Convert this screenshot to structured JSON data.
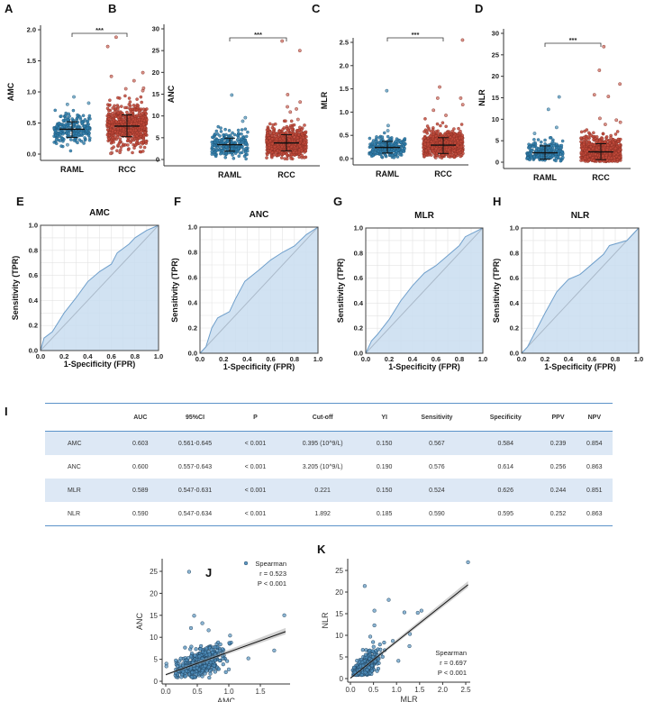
{
  "panel_labels": {
    "A": "A",
    "B": "B",
    "C": "C",
    "D": "D",
    "E": "E",
    "F": "F",
    "G": "G",
    "H": "H",
    "I": "I",
    "J": "J",
    "K": "K"
  },
  "colors": {
    "RAML": "#2f7eab",
    "RCC": "#c24a3b",
    "roc_fill": "#c9ddf0",
    "roc_line": "#6f9fcb",
    "diagonal": "#aab9c9",
    "regression": "#111111"
  },
  "chart_data": [
    {
      "id": "A",
      "type": "scatter",
      "subtype": "jitter-dot",
      "ylabel": "AMC",
      "categories": [
        "RAML",
        "RCC"
      ],
      "ylim": [
        0,
        2.0
      ],
      "yticks": [
        "0.0",
        "0.5",
        "1.0",
        "1.5",
        "2.0"
      ],
      "significance": "***",
      "groups": [
        {
          "name": "RAML",
          "mean": 0.4,
          "sd_low": 0.27,
          "sd_high": 0.52,
          "outliers": [
            0.92,
            0.82,
            0.8,
            0.15
          ]
        },
        {
          "name": "RCC",
          "mean": 0.45,
          "sd_low": 0.28,
          "sd_high": 0.63,
          "outliers": [
            1.88,
            1.73,
            1.31,
            1.25,
            1.18,
            1.06,
            1.05,
            1.02,
            0.02,
            0.01
          ]
        }
      ]
    },
    {
      "id": "B",
      "type": "scatter",
      "subtype": "jitter-dot",
      "ylabel": "ANC",
      "categories": [
        "RAML",
        "RCC"
      ],
      "ylim": [
        0,
        30
      ],
      "yticks": [
        "0",
        "5",
        "10",
        "15",
        "20",
        "25",
        "30"
      ],
      "significance": "***",
      "groups": [
        {
          "name": "RAML",
          "mean": 3.4,
          "sd_low": 1.9,
          "sd_high": 4.9,
          "outliers": [
            14.8,
            9.6,
            8.8
          ]
        },
        {
          "name": "RCC",
          "mean": 3.8,
          "sd_low": 2.0,
          "sd_high": 5.7,
          "outliers": [
            27.2,
            25.0,
            14.9,
            13.2,
            12.1,
            11.6,
            10.9,
            9.2
          ]
        }
      ]
    },
    {
      "id": "C",
      "type": "scatter",
      "subtype": "jitter-dot",
      "ylabel": "MLR",
      "categories": [
        "RAML",
        "RCC"
      ],
      "ylim": [
        0,
        2.5
      ],
      "yticks": [
        "0.0",
        "0.5",
        "1.0",
        "1.5",
        "2.0",
        "2.5"
      ],
      "significance": "***",
      "groups": [
        {
          "name": "RAML",
          "mean": 0.24,
          "sd_low": 0.12,
          "sd_high": 0.37,
          "outliers": [
            1.46,
            0.71,
            0.6
          ]
        },
        {
          "name": "RCC",
          "mean": 0.29,
          "sd_low": 0.11,
          "sd_high": 0.45,
          "outliers": [
            2.55,
            1.54,
            1.3,
            1.3,
            1.16,
            1.04,
            0.93,
            0.02
          ]
        }
      ]
    },
    {
      "id": "D",
      "type": "scatter",
      "subtype": "jitter-dot",
      "ylabel": "NLR",
      "categories": [
        "RAML",
        "RCC"
      ],
      "ylim": [
        0,
        30
      ],
      "yticks": [
        "0",
        "5",
        "10",
        "15",
        "20",
        "25",
        "30"
      ],
      "significance": "***",
      "groups": [
        {
          "name": "RAML",
          "mean": 2.2,
          "sd_low": 0.7,
          "sd_high": 3.8,
          "outliers": [
            15.2,
            12.3,
            8.1,
            6.7
          ]
        },
        {
          "name": "RCC",
          "mean": 2.4,
          "sd_low": 0.6,
          "sd_high": 4.3,
          "outliers": [
            26.9,
            21.4,
            18.2,
            15.7,
            15.3,
            10.2,
            9.8,
            9.3,
            8.8
          ]
        }
      ]
    },
    {
      "id": "E",
      "type": "area",
      "title": "AMC",
      "xlabel": "1-Specificity (FPR)",
      "ylabel": "Sensitivity (TPR)",
      "xlim": [
        0,
        1
      ],
      "ylim": [
        0,
        1
      ],
      "ticks": [
        "0.0",
        "0.2",
        "0.4",
        "0.6",
        "0.8",
        "1.0"
      ],
      "grid": true,
      "points": [
        [
          0,
          0
        ],
        [
          0.03,
          0.1
        ],
        [
          0.1,
          0.15
        ],
        [
          0.2,
          0.3
        ],
        [
          0.3,
          0.42
        ],
        [
          0.4,
          0.55
        ],
        [
          0.5,
          0.63
        ],
        [
          0.6,
          0.69
        ],
        [
          0.65,
          0.78
        ],
        [
          0.75,
          0.85
        ],
        [
          0.8,
          0.9
        ],
        [
          0.9,
          0.96
        ],
        [
          1,
          1
        ]
      ]
    },
    {
      "id": "F",
      "type": "area",
      "title": "ANC",
      "xlabel": "1-Specificity (FPR)",
      "ylabel": "Sensitivity (TPR)",
      "xlim": [
        0,
        1
      ],
      "ylim": [
        0,
        1
      ],
      "ticks": [
        "0.0",
        "0.2",
        "0.4",
        "0.6",
        "0.8",
        "1.0"
      ],
      "grid": true,
      "points": [
        [
          0,
          0
        ],
        [
          0.05,
          0.05
        ],
        [
          0.1,
          0.2
        ],
        [
          0.15,
          0.28
        ],
        [
          0.25,
          0.33
        ],
        [
          0.3,
          0.43
        ],
        [
          0.38,
          0.57
        ],
        [
          0.5,
          0.66
        ],
        [
          0.6,
          0.74
        ],
        [
          0.7,
          0.8
        ],
        [
          0.8,
          0.85
        ],
        [
          0.9,
          0.94
        ],
        [
          1,
          1
        ]
      ]
    },
    {
      "id": "G",
      "type": "area",
      "title": "MLR",
      "xlabel": "1-Specificity (FPR)",
      "ylabel": "Sensitivity (TPR)",
      "xlim": [
        0,
        1
      ],
      "ylim": [
        0,
        1
      ],
      "ticks": [
        "0.0",
        "0.2",
        "0.4",
        "0.6",
        "0.8",
        "1.0"
      ],
      "grid": true,
      "points": [
        [
          0,
          0
        ],
        [
          0.05,
          0.1
        ],
        [
          0.1,
          0.15
        ],
        [
          0.2,
          0.27
        ],
        [
          0.3,
          0.42
        ],
        [
          0.4,
          0.54
        ],
        [
          0.5,
          0.64
        ],
        [
          0.6,
          0.7
        ],
        [
          0.7,
          0.78
        ],
        [
          0.8,
          0.86
        ],
        [
          0.85,
          0.93
        ],
        [
          1,
          1
        ]
      ]
    },
    {
      "id": "H",
      "type": "area",
      "title": "NLR",
      "xlabel": "1-Specificity (FPR)",
      "ylabel": "Sensitivity (TPR)",
      "xlim": [
        0,
        1
      ],
      "ylim": [
        0,
        1
      ],
      "ticks": [
        "0.0",
        "0.2",
        "0.4",
        "0.6",
        "0.8",
        "1.0"
      ],
      "grid": true,
      "points": [
        [
          0,
          0
        ],
        [
          0.05,
          0.05
        ],
        [
          0.1,
          0.14
        ],
        [
          0.2,
          0.32
        ],
        [
          0.3,
          0.49
        ],
        [
          0.4,
          0.59
        ],
        [
          0.5,
          0.63
        ],
        [
          0.6,
          0.71
        ],
        [
          0.7,
          0.79
        ],
        [
          0.75,
          0.86
        ],
        [
          0.9,
          0.9
        ],
        [
          1,
          1
        ]
      ]
    },
    {
      "id": "J",
      "type": "scatter",
      "xlabel": "AMC",
      "ylabel": "ANC",
      "xlim": [
        0,
        1.9
      ],
      "ylim": [
        0,
        27
      ],
      "xticks": [
        "0.0",
        "0.5",
        "1.0",
        "1.5"
      ],
      "yticks": [
        "0",
        "5",
        "10",
        "15",
        "20",
        "25"
      ],
      "legend": "Spearman",
      "r": "r = 0.523",
      "p": "P < 0.001",
      "legend_position": "top-right",
      "regression": [
        [
          0,
          1.5
        ],
        [
          1.9,
          11.3
        ]
      ],
      "outliers": [
        [
          0.37,
          24.9
        ],
        [
          1.88,
          15.0
        ],
        [
          0.45,
          14.9
        ],
        [
          0.58,
          13.2
        ],
        [
          0.4,
          12.1
        ],
        [
          0.68,
          11.6
        ],
        [
          1.02,
          10.4
        ],
        [
          1.72,
          7.0
        ],
        [
          1.31,
          5.2
        ],
        [
          1.0,
          2.7
        ],
        [
          0.01,
          4.0
        ],
        [
          0.01,
          3.4
        ]
      ]
    },
    {
      "id": "K",
      "type": "scatter",
      "xlabel": "MLR",
      "ylabel": "NLR",
      "xlim": [
        0,
        2.6
      ],
      "ylim": [
        0,
        27
      ],
      "xticks": [
        "0.0",
        "0.5",
        "1.0",
        "1.5",
        "2.0",
        "2.5"
      ],
      "yticks": [
        "0",
        "5",
        "10",
        "15",
        "20",
        "25"
      ],
      "legend": "Spearman",
      "r": "r = 0.697",
      "p": "P < 0.001",
      "legend_position": "bottom-right",
      "regression": [
        [
          0,
          0.1
        ],
        [
          2.55,
          21.7
        ]
      ],
      "outliers": [
        [
          2.55,
          26.9
        ],
        [
          0.31,
          21.4
        ],
        [
          0.83,
          18.2
        ],
        [
          0.52,
          15.7
        ],
        [
          1.17,
          15.3
        ],
        [
          1.46,
          15.2
        ],
        [
          1.54,
          15.7
        ],
        [
          0.52,
          12.3
        ],
        [
          1.29,
          10.3
        ],
        [
          0.43,
          9.7
        ],
        [
          0.92,
          8.7
        ],
        [
          1.28,
          7.5
        ],
        [
          1.04,
          4.1
        ]
      ]
    }
  ],
  "table": {
    "headers": [
      "",
      "AUC",
      "95%CI",
      "P",
      "Cut-off",
      "YI",
      "Sensitivity",
      "Specificity",
      "PPV",
      "NPV"
    ],
    "rows": [
      [
        "AMC",
        "0.603",
        "0.561-0.645",
        "< 0.001",
        "0.395 (10^9/L)",
        "0.150",
        "0.567",
        "0.584",
        "0.239",
        "0.854"
      ],
      [
        "ANC",
        "0.600",
        "0.557-0.643",
        "< 0.001",
        "3.205 (10^9/L)",
        "0.190",
        "0.576",
        "0.614",
        "0.256",
        "0.863"
      ],
      [
        "MLR",
        "0.589",
        "0.547-0.631",
        "< 0.001",
        "0.221",
        "0.150",
        "0.524",
        "0.626",
        "0.244",
        "0.851"
      ],
      [
        "NLR",
        "0.590",
        "0.547-0.634",
        "< 0.001",
        "1.892",
        "0.185",
        "0.590",
        "0.595",
        "0.252",
        "0.863"
      ]
    ]
  }
}
